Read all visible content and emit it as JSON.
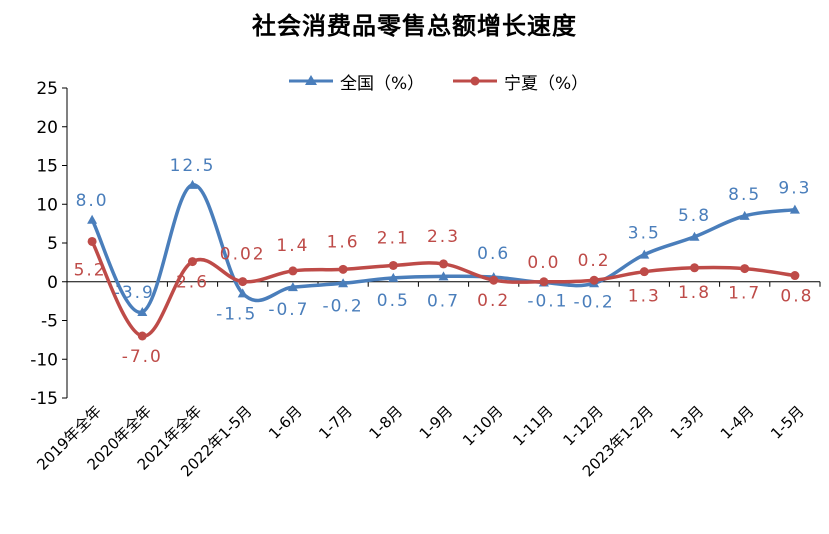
{
  "chart_data": {
    "type": "line",
    "title": "社会消费品零售总额增长速度",
    "categories": [
      "2019年全年",
      "2020年全年",
      "2021年全年",
      "2022年1-5月",
      "1-6月",
      "1-7月",
      "1-8月",
      "1-9月",
      "1-10月",
      "1-11月",
      "1-12月",
      "2023年1-2月",
      "1-3月",
      "1-4月",
      "1-5月"
    ],
    "ylim": [
      -15,
      25
    ],
    "yticks": [
      "25",
      "20",
      "15",
      "10",
      "5",
      "0",
      "-5",
      "-10",
      "-15"
    ],
    "legend_position": "top",
    "grid": false,
    "series": [
      {
        "name": "全国（%）",
        "color": "#4A7EBB",
        "marker": "triangle",
        "values": [
          8.0,
          -3.9,
          12.5,
          -1.5,
          -0.7,
          -0.2,
          0.5,
          0.7,
          0.6,
          -0.1,
          -0.2,
          3.5,
          5.8,
          8.5,
          9.3
        ],
        "labels": [
          "8.0",
          "-3.9",
          "12.5",
          "-1.5",
          "-0.7",
          "-0.2",
          "0.5",
          "0.7",
          "0.6",
          "-0.1",
          "-0.2",
          "3.5",
          "5.8",
          "8.5",
          "9.3"
        ]
      },
      {
        "name": "宁夏（%）",
        "color": "#BE4B48",
        "marker": "circle",
        "values": [
          5.2,
          -7.0,
          2.6,
          0.02,
          1.4,
          1.6,
          2.1,
          2.3,
          0.2,
          0.0,
          0.2,
          1.3,
          1.8,
          1.7,
          0.8
        ],
        "labels": [
          "5.2",
          "-7.0",
          "2.6",
          "0.02",
          "1.4",
          "1.6",
          "2.1",
          "2.3",
          "0.2",
          "0.0",
          "0.2",
          "1.3",
          "1.8",
          "1.7",
          "0.8"
        ]
      }
    ]
  }
}
